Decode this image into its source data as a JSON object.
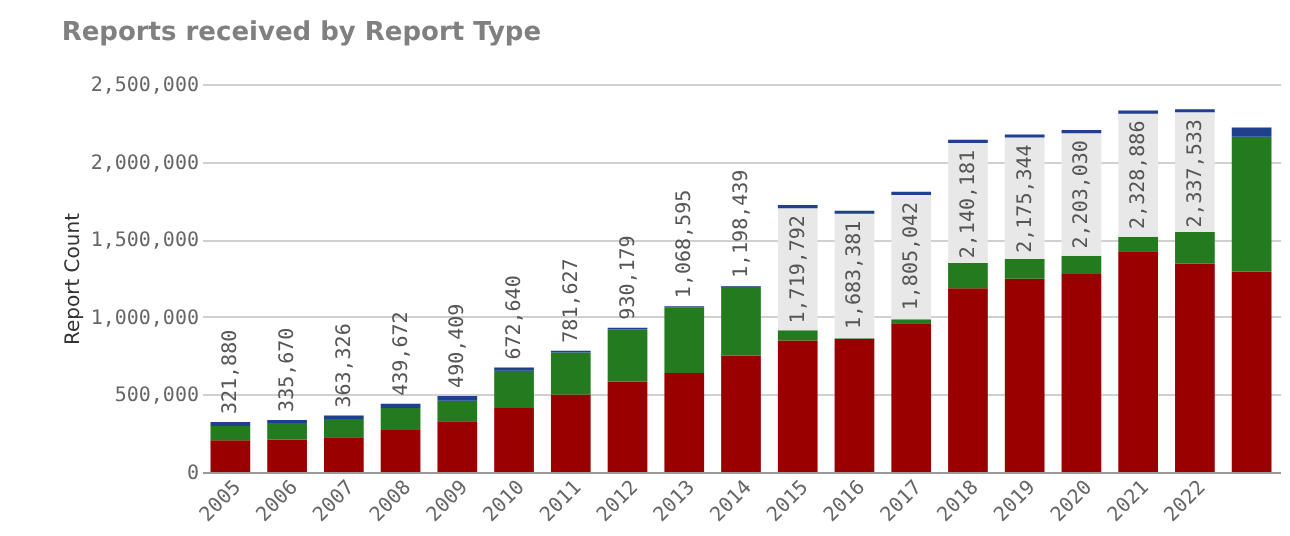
{
  "chart_data": {
    "type": "bar",
    "title": "Reports received by Report Type",
    "ylabel": "Report Count",
    "stacked": true,
    "categories": [
      "2005",
      "2006",
      "2007",
      "2008",
      "2009",
      "2010",
      "2011",
      "2012",
      "2013",
      "2014",
      "2015",
      "2016",
      "2017",
      "2018",
      "2019",
      "2020",
      "2021",
      "2022",
      null
    ],
    "series": [
      {
        "color": "#990000",
        "values": [
          204000,
          209000,
          224000,
          270000,
          327000,
          413000,
          500000,
          582000,
          638000,
          750000,
          847000,
          857000,
          959000,
          1184000,
          1245000,
          1276000,
          1423000,
          1342000,
          1290000
        ]
      },
      {
        "color": "#237a1f",
        "values": [
          92000,
          107000,
          118000,
          143000,
          132000,
          240000,
          270000,
          336000,
          423000,
          444000,
          66000,
          5000,
          26000,
          163000,
          128000,
          117000,
          92000,
          204000,
          870000
        ]
      },
      {
        "color": "#e8e8e8",
        "values": [
          0,
          0,
          0,
          0,
          0,
          0,
          0,
          0,
          0,
          0,
          786792,
          801381,
          800042,
          773181,
          782344,
          790030,
          793886,
          771533,
          0
        ]
      },
      {
        "color": "#1f3f8f",
        "values": [
          25880,
          19670,
          21326,
          26672,
          31409,
          19640,
          11627,
          12179,
          7595,
          4439,
          20000,
          20000,
          20000,
          20000,
          20000,
          20000,
          20000,
          20000,
          60000
        ]
      }
    ],
    "totals": [
      "321,880",
      "335,670",
      "363,326",
      "439,672",
      "490,409",
      "672,640",
      "781,627",
      "930,179",
      "1,068,595",
      "1,198,439",
      "1,719,792",
      "1,683,381",
      "1,805,042",
      "2,140,181",
      "2,175,344",
      "2,203,030",
      "2,328,886",
      "2,337,533",
      null
    ],
    "ylim": [
      0,
      2500000
    ],
    "yticks": [
      0,
      {
        "value": 500000,
        "label": "500,000"
      },
      {
        "value": 1000000,
        "label": "1,000,000"
      },
      {
        "value": 1500000,
        "label": "1,500,000"
      },
      {
        "value": 2000000,
        "label": "2,000,000"
      },
      {
        "value": 2500000,
        "label": "2,500,000"
      }
    ],
    "grid": "y"
  }
}
